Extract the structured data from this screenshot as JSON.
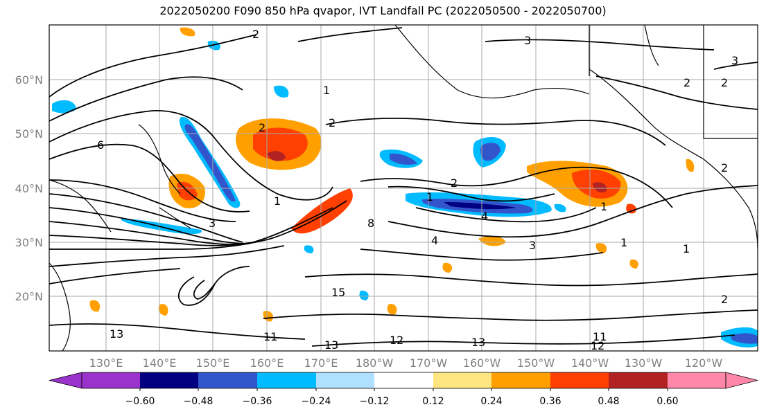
{
  "title": "2022050200 F090 850 hPa qvapor, IVT Landfall PC (2022050500 - 2022050700)",
  "lat_labels": [
    "60°N",
    "50°N",
    "40°N",
    "30°N",
    "20°N"
  ],
  "lon_labels": [
    "130°E",
    "140°E",
    "150°E",
    "160°E",
    "170°E",
    "180°W",
    "170°W",
    "160°W",
    "150°W",
    "140°W",
    "130°W",
    "120°W"
  ],
  "colorbar": {
    "ticks": [
      "−0.60",
      "−0.48",
      "−0.36",
      "−0.24",
      "−0.12",
      "0.12",
      "0.24",
      "0.36",
      "0.48",
      "0.60"
    ],
    "colors": [
      "#9933cc",
      "#000080",
      "#3355cc",
      "#00bbff",
      "#b0e0ff",
      "#ffffff",
      "#ffe680",
      "#ffa000",
      "#ff4000",
      "#b22222",
      "#ff88aa"
    ]
  },
  "contour_labels": [
    "2",
    "3",
    "3",
    "2",
    "2",
    "1",
    "2",
    "2",
    "2",
    "1",
    "4",
    "1",
    "1",
    "3",
    "6",
    "8",
    "2",
    "4",
    "3",
    "1",
    "1",
    "2",
    "13",
    "11",
    "12",
    "13",
    "12",
    "11",
    "13",
    "15"
  ]
}
